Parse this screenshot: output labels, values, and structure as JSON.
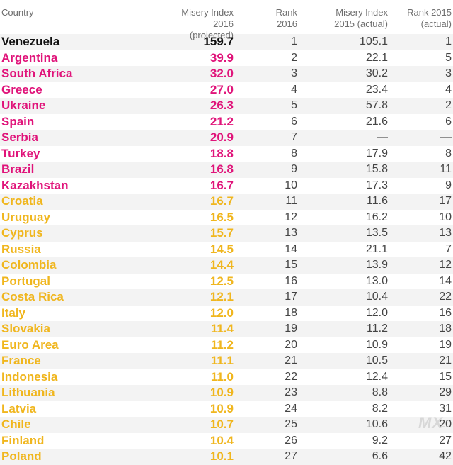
{
  "colors": {
    "header_text": "#6f6f6f",
    "top_tier": "#111111",
    "red_tier": "#e0147a",
    "orange_tier": "#f0b61e",
    "plain_text": "#444444",
    "stripe": "#f3f3f3"
  },
  "headers": {
    "country": "Country",
    "misery_2016_line1": "Misery Index",
    "misery_2016_line2": "2016 (projected)",
    "rank_2016_line1": "Rank",
    "rank_2016_line2": "2016",
    "misery_2015_line1": "Misery Index",
    "misery_2015_line2": "2015 (actual)",
    "rank_2015_line1": "Rank 2015",
    "rank_2015_line2": "(actual)"
  },
  "chart_data": {
    "type": "table",
    "columns": [
      "Country",
      "Misery Index 2016 (projected)",
      "Rank 2016",
      "Misery Index 2015 (actual)",
      "Rank 2015 (actual)"
    ],
    "rows": [
      {
        "country": "Venezuela",
        "misery_2016": "159.7",
        "rank_2016": "1",
        "misery_2015": "105.1",
        "rank_2015": "1",
        "tier": "top"
      },
      {
        "country": "Argentina",
        "misery_2016": "39.9",
        "rank_2016": "2",
        "misery_2015": "22.1",
        "rank_2015": "5",
        "tier": "red"
      },
      {
        "country": "South Africa",
        "misery_2016": "32.0",
        "rank_2016": "3",
        "misery_2015": "30.2",
        "rank_2015": "3",
        "tier": "red"
      },
      {
        "country": "Greece",
        "misery_2016": "27.0",
        "rank_2016": "4",
        "misery_2015": "23.4",
        "rank_2015": "4",
        "tier": "red"
      },
      {
        "country": "Ukraine",
        "misery_2016": "26.3",
        "rank_2016": "5",
        "misery_2015": "57.8",
        "rank_2015": "2",
        "tier": "red"
      },
      {
        "country": "Spain",
        "misery_2016": "21.2",
        "rank_2016": "6",
        "misery_2015": "21.6",
        "rank_2015": "6",
        "tier": "red"
      },
      {
        "country": "Serbia",
        "misery_2016": "20.9",
        "rank_2016": "7",
        "misery_2015": "—",
        "rank_2015": "—",
        "tier": "red"
      },
      {
        "country": "Turkey",
        "misery_2016": "18.8",
        "rank_2016": "8",
        "misery_2015": "17.9",
        "rank_2015": "8",
        "tier": "red"
      },
      {
        "country": "Brazil",
        "misery_2016": "16.8",
        "rank_2016": "9",
        "misery_2015": "15.8",
        "rank_2015": "11",
        "tier": "red"
      },
      {
        "country": "Kazakhstan",
        "misery_2016": "16.7",
        "rank_2016": "10",
        "misery_2015": "17.3",
        "rank_2015": "9",
        "tier": "red"
      },
      {
        "country": "Croatia",
        "misery_2016": "16.7",
        "rank_2016": "11",
        "misery_2015": "11.6",
        "rank_2015": "17",
        "tier": "orange"
      },
      {
        "country": "Uruguay",
        "misery_2016": "16.5",
        "rank_2016": "12",
        "misery_2015": "16.2",
        "rank_2015": "10",
        "tier": "orange"
      },
      {
        "country": "Cyprus",
        "misery_2016": "15.7",
        "rank_2016": "13",
        "misery_2015": "13.5",
        "rank_2015": "13",
        "tier": "orange"
      },
      {
        "country": "Russia",
        "misery_2016": "14.5",
        "rank_2016": "14",
        "misery_2015": "21.1",
        "rank_2015": "7",
        "tier": "orange"
      },
      {
        "country": "Colombia",
        "misery_2016": "14.4",
        "rank_2016": "15",
        "misery_2015": "13.9",
        "rank_2015": "12",
        "tier": "orange"
      },
      {
        "country": "Portugal",
        "misery_2016": "12.5",
        "rank_2016": "16",
        "misery_2015": "13.0",
        "rank_2015": "14",
        "tier": "orange"
      },
      {
        "country": "Costa Rica",
        "misery_2016": "12.1",
        "rank_2016": "17",
        "misery_2015": "10.4",
        "rank_2015": "22",
        "tier": "orange"
      },
      {
        "country": "Italy",
        "misery_2016": "12.0",
        "rank_2016": "18",
        "misery_2015": "12.0",
        "rank_2015": "16",
        "tier": "orange"
      },
      {
        "country": "Slovakia",
        "misery_2016": "11.4",
        "rank_2016": "19",
        "misery_2015": "11.2",
        "rank_2015": "18",
        "tier": "orange"
      },
      {
        "country": "Euro Area",
        "misery_2016": "11.2",
        "rank_2016": "20",
        "misery_2015": "10.9",
        "rank_2015": "19",
        "tier": "orange"
      },
      {
        "country": "France",
        "misery_2016": "11.1",
        "rank_2016": "21",
        "misery_2015": "10.5",
        "rank_2015": "21",
        "tier": "orange"
      },
      {
        "country": "Indonesia",
        "misery_2016": "11.0",
        "rank_2016": "22",
        "misery_2015": "12.4",
        "rank_2015": "15",
        "tier": "orange"
      },
      {
        "country": "Lithuania",
        "misery_2016": "10.9",
        "rank_2016": "23",
        "misery_2015": "8.8",
        "rank_2015": "29",
        "tier": "orange"
      },
      {
        "country": "Latvia",
        "misery_2016": "10.9",
        "rank_2016": "24",
        "misery_2015": "8.2",
        "rank_2015": "31",
        "tier": "orange"
      },
      {
        "country": "Chile",
        "misery_2016": "10.7",
        "rank_2016": "25",
        "misery_2015": "10.6",
        "rank_2015": "20",
        "tier": "orange"
      },
      {
        "country": "Finland",
        "misery_2016": "10.4",
        "rank_2016": "26",
        "misery_2015": "9.2",
        "rank_2015": "27",
        "tier": "orange"
      },
      {
        "country": "Poland",
        "misery_2016": "10.1",
        "rank_2016": "27",
        "misery_2015": "6.6",
        "rank_2015": "42",
        "tier": "orange"
      }
    ]
  },
  "watermark": "MX"
}
